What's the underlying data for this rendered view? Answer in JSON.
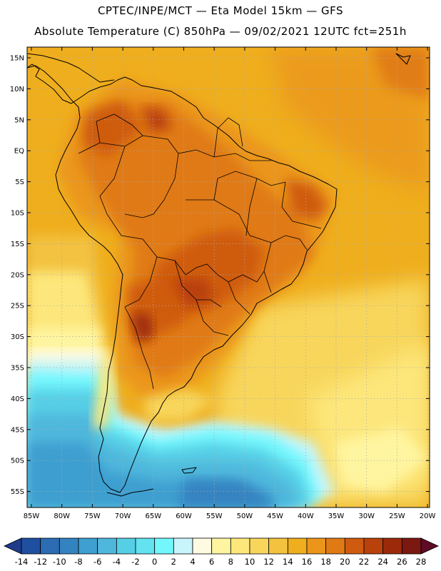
{
  "title_line1": "CPTEC/INPE/MCT —  Eta Model 15km — GFS",
  "title_line2": "Absolute Temperature (C) 850hPa — 09/02/2021 12UTC fct=251h",
  "lat_labels": [
    "15N",
    "10N",
    "5N",
    "EQ",
    "5S",
    "10S",
    "15S",
    "20S",
    "25S",
    "30S",
    "35S",
    "40S",
    "45S",
    "50S",
    "55S"
  ],
  "lon_labels": [
    "85W",
    "80W",
    "75W",
    "70W",
    "65W",
    "60W",
    "55W",
    "50W",
    "45W",
    "40W",
    "35W",
    "30W",
    "25W",
    "20W"
  ],
  "colorbar": {
    "labels": [
      "-14",
      "-12",
      "-10",
      "-8",
      "-6",
      "-4",
      "-2",
      "0",
      "2",
      "4",
      "6",
      "8",
      "10",
      "12",
      "14",
      "16",
      "18",
      "20",
      "22",
      "24",
      "26",
      "28"
    ],
    "colors": [
      "#1e3c8a",
      "#1f4fa0",
      "#2b6cb3",
      "#3483c1",
      "#3e9fd0",
      "#4fb7dc",
      "#56cfe6",
      "#63e2f0",
      "#73f7fd",
      "#c8f5fb",
      "#fffbe2",
      "#fff5a0",
      "#fde77b",
      "#f8d65c",
      "#f3c23f",
      "#efae1d",
      "#eb961a",
      "#e07a15",
      "#cf5b10",
      "#b9410c",
      "#9b2a0b",
      "#7b1812",
      "#5e0c26"
    ]
  }
}
